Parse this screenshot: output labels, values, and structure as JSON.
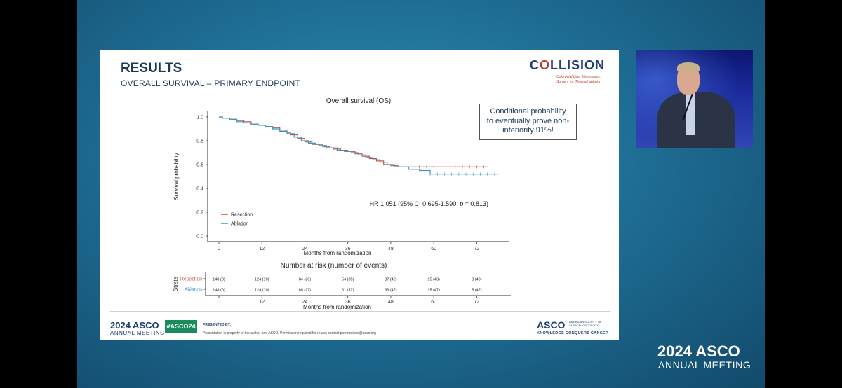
{
  "slide": {
    "title": "RESULTS",
    "subtitle": "OVERALL SURVIVAL – PRIMARY ENDPOINT",
    "brand": {
      "name_pre": "C",
      "name_o": "O",
      "name_post": "LLISION",
      "tagline_1": "Colorectal Liver Metastases:",
      "tagline_2": "Surgery vs. Thermal ablation"
    },
    "callout_lines": [
      "Conditional probability",
      "to eventually prove non-",
      "inferiority 91%!"
    ],
    "footer": {
      "year": "2024 ASCO",
      "meeting": "ANNUAL MEETING",
      "hashtag": "#ASCO24",
      "presented_by": "PRESENTED BY:",
      "note": "Presentation is property of the author and ASCO. Permission required for reuse; contact permissions@asco.org",
      "asco": "ASCO",
      "society": "AMERICAN SOCIETY OF CLINICAL ONCOLOGY",
      "knowledge": "KNOWLEDGE CONQUERS CANCER"
    }
  },
  "watermark": {
    "year": "2024 ASCO",
    "meeting": "ANNUAL MEETING"
  },
  "colors": {
    "resection": "#c0574a",
    "ablation": "#3a97c2"
  },
  "chart_data": [
    {
      "type": "line",
      "step": true,
      "title": "Overall survival (OS)",
      "xlabel": "Months from randomization",
      "ylabel": "Survival probability",
      "xlim": [
        0,
        78
      ],
      "ylim": [
        0,
        1.0
      ],
      "xticks": [
        "0",
        "12",
        "24",
        "36",
        "48",
        "60",
        "72"
      ],
      "yticks": [
        "0.0",
        "0.2",
        "0.4",
        "0.6",
        "0.8",
        "1.0"
      ],
      "legend_position": "bottom-left",
      "annotation": {
        "pre": "HR 1.051 (95% CI 0.695-1.590; ",
        "p": "p",
        "post": " = 0.813)"
      },
      "series": [
        {
          "name": "Resection",
          "color": "#c0574a",
          "x": [
            0,
            1,
            3,
            5,
            7,
            9,
            11,
            13,
            15,
            17,
            19,
            20,
            22,
            24,
            26,
            28,
            30,
            32,
            34,
            36,
            38,
            40,
            42,
            44,
            46,
            48,
            50,
            52,
            56,
            60,
            64,
            68,
            75
          ],
          "y": [
            1.0,
            0.99,
            0.98,
            0.97,
            0.96,
            0.94,
            0.93,
            0.92,
            0.91,
            0.89,
            0.87,
            0.85,
            0.82,
            0.79,
            0.77,
            0.76,
            0.74,
            0.73,
            0.72,
            0.71,
            0.69,
            0.67,
            0.65,
            0.63,
            0.6,
            0.59,
            0.58,
            0.58,
            0.58,
            0.58,
            0.58,
            0.58,
            0.58
          ]
        },
        {
          "name": "Ablation",
          "color": "#3a97c2",
          "x": [
            0,
            1,
            3,
            5,
            7,
            9,
            11,
            13,
            15,
            17,
            19,
            21,
            23,
            25,
            27,
            29,
            31,
            33,
            35,
            37,
            39,
            41,
            43,
            45,
            47,
            49,
            53,
            56,
            59,
            62,
            66,
            72,
            78
          ],
          "y": [
            1.0,
            0.99,
            0.98,
            0.96,
            0.95,
            0.94,
            0.93,
            0.92,
            0.9,
            0.88,
            0.86,
            0.83,
            0.8,
            0.78,
            0.77,
            0.75,
            0.74,
            0.72,
            0.71,
            0.7,
            0.68,
            0.66,
            0.64,
            0.62,
            0.6,
            0.58,
            0.56,
            0.55,
            0.52,
            0.52,
            0.52,
            0.52,
            0.52
          ]
        }
      ]
    },
    {
      "type": "table",
      "title": "Number at risk (number of events)",
      "xlabel": "Months from randomization",
      "ylabel": "Strata",
      "xticks": [
        "0",
        "12",
        "24",
        "36",
        "48",
        "60",
        "72"
      ],
      "rows": [
        {
          "name": "Resection",
          "color": "#c0574a",
          "values": [
            "148 (0)",
            "124 (10)",
            "84 (26)",
            "54 (35)",
            "37 (42)",
            "15 (43)",
            "3 (43)"
          ]
        },
        {
          "name": "Ablation",
          "color": "#3a97c2",
          "values": [
            "148 (0)",
            "124 (10)",
            "89 (27)",
            "61 (37)",
            "36 (42)",
            "15 (47)",
            "5 (47)"
          ]
        }
      ]
    }
  ]
}
